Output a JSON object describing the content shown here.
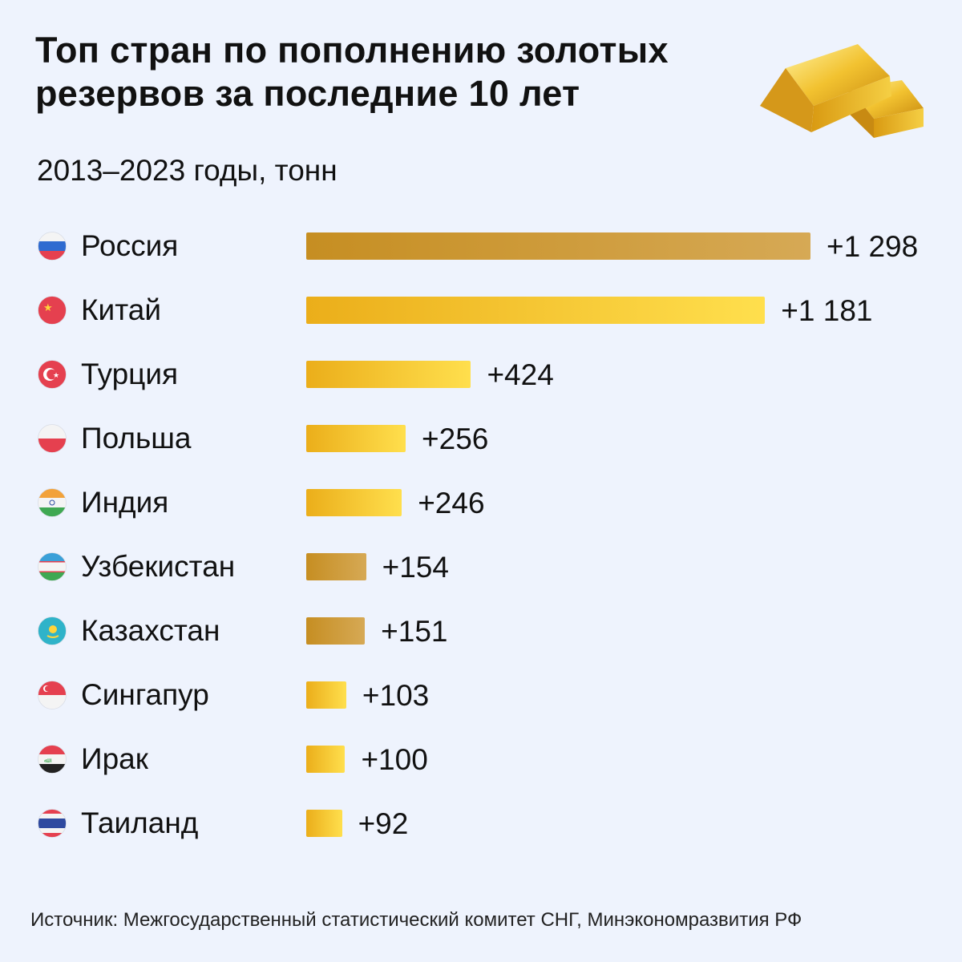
{
  "chart_data": {
    "type": "bar",
    "orientation": "horizontal",
    "title": "Топ стран по пополнению золотых резервов за последние 10 лет",
    "subtitle": "2013–2023 годы, тонн",
    "categories": [
      "Россия",
      "Китай",
      "Турция",
      "Польша",
      "Индия",
      "Узбекистан",
      "Казахстан",
      "Сингапур",
      "Ирак",
      "Таиланд"
    ],
    "values": [
      1298,
      1181,
      424,
      256,
      246,
      154,
      151,
      103,
      100,
      92
    ],
    "labels": [
      "+1 298",
      "+1 181",
      "+424",
      "+256",
      "+246",
      "+154",
      "+151",
      "+103",
      "+100",
      "+92"
    ],
    "flags": [
      "russia",
      "china",
      "turkey",
      "poland",
      "india",
      "uzbekistan",
      "kazakhstan",
      "singapore",
      "iraq",
      "thailand"
    ],
    "bar_styles": [
      "dark",
      "bright",
      "bright",
      "bright",
      "bright",
      "dark",
      "dark",
      "bright",
      "bright",
      "bright"
    ],
    "xlim": [
      0,
      1298
    ],
    "colors": {
      "dark": [
        "#c68e22",
        "#d6a955"
      ],
      "bright": [
        "#ebae1a",
        "#ffdf4d"
      ]
    },
    "source": "Источник: Межгосударственный статистический комитет СНГ, Минэкономразвития РФ"
  }
}
